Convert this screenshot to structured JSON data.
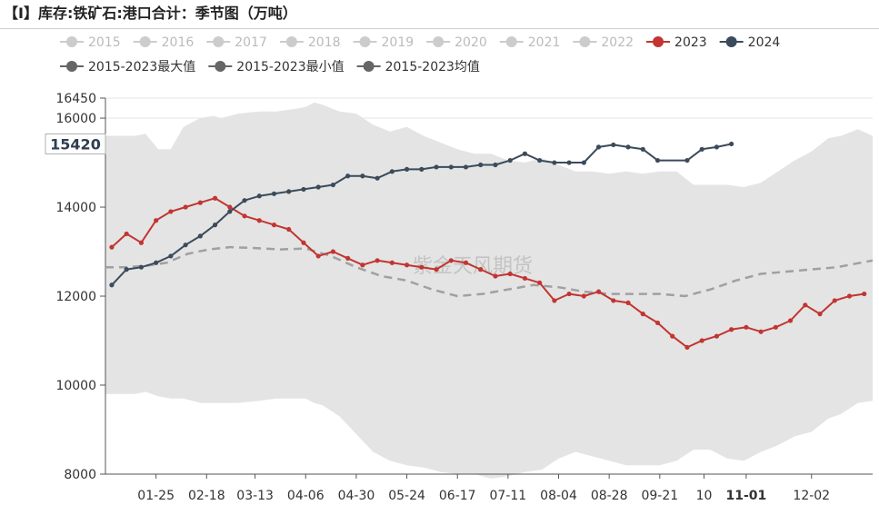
{
  "title": "【I】库存:铁矿石:港口合计：季节图（万吨）",
  "watermark": "紫金天风期货",
  "colors": {
    "band": "#e4e4e4",
    "average": "#a0a0a0",
    "series_2023": "#c23531",
    "series_2024": "#3b4b5b",
    "inactive": "#cccccc",
    "summary": "#666666",
    "grid": "#e6e6e6"
  },
  "chart_data": {
    "type": "line",
    "title": "【I】库存:铁矿石:港口合计：季节图（万吨）",
    "ylim": [
      8000,
      16450
    ],
    "xlim": [
      "01-01",
      "12-31"
    ],
    "y_ticks": [
      "8000",
      "10000",
      "12000",
      "14000",
      "16000",
      "16450"
    ],
    "y_tick_values": [
      8000,
      10000,
      12000,
      14000,
      16000,
      16450
    ],
    "x_ticks": [
      "01-25",
      "02-18",
      "03-13",
      "04-06",
      "04-30",
      "05-24",
      "06-17",
      "07-11",
      "08-04",
      "08-28",
      "09-21",
      "10",
      "11-01",
      "12-02"
    ],
    "x_tick_days": [
      25,
      49,
      72,
      96,
      120,
      144,
      168,
      192,
      216,
      240,
      264,
      285,
      305,
      336
    ],
    "highlight_x_tick": "11-01",
    "y_pointer_label": "15420",
    "y_pointer_value": 15420,
    "legend": [
      {
        "name": "2015",
        "active": false
      },
      {
        "name": "2016",
        "active": false
      },
      {
        "name": "2017",
        "active": false
      },
      {
        "name": "2018",
        "active": false
      },
      {
        "name": "2019",
        "active": false
      },
      {
        "name": "2020",
        "active": false
      },
      {
        "name": "2021",
        "active": false
      },
      {
        "name": "2022",
        "active": false
      },
      {
        "name": "2023",
        "active": true
      },
      {
        "name": "2024",
        "active": true
      },
      {
        "name": "2015-2023最大值",
        "active": true
      },
      {
        "name": "2015-2023最小值",
        "active": true
      },
      {
        "name": "2015-2023均值",
        "active": true
      }
    ],
    "band": {
      "name": "2015-2023最大值 / 2015-2023最小值",
      "x": [
        1,
        8,
        15,
        20,
        26,
        32,
        38,
        46,
        52,
        56,
        64,
        74,
        82,
        90,
        96,
        100,
        104,
        112,
        120,
        128,
        136,
        144,
        152,
        160,
        168,
        176,
        184,
        192,
        200,
        208,
        216,
        224,
        232,
        240,
        248,
        256,
        264,
        272,
        280,
        288,
        296,
        304,
        312,
        320,
        328,
        336,
        344,
        350,
        358,
        365
      ],
      "max": [
        15600,
        15600,
        15600,
        15650,
        15300,
        15300,
        15800,
        16000,
        16050,
        16000,
        16100,
        16150,
        16150,
        16200,
        16250,
        16350,
        16300,
        16150,
        16100,
        15850,
        15700,
        15800,
        15600,
        15450,
        15300,
        15200,
        15200,
        15050,
        15000,
        15100,
        14950,
        14800,
        14800,
        14750,
        14800,
        14750,
        14800,
        14800,
        14500,
        14500,
        14500,
        14450,
        14550,
        14800,
        15050,
        15250,
        15550,
        15600,
        15750,
        15600
      ],
      "min": [
        9800,
        9800,
        9800,
        9850,
        9750,
        9700,
        9700,
        9600,
        9600,
        9600,
        9600,
        9650,
        9700,
        9700,
        9700,
        9600,
        9550,
        9300,
        8900,
        8500,
        8300,
        8200,
        8150,
        8050,
        8000,
        8000,
        7900,
        7950,
        8050,
        8100,
        8350,
        8500,
        8400,
        8300,
        8200,
        8200,
        8200,
        8300,
        8550,
        8550,
        8350,
        8300,
        8500,
        8650,
        8850,
        8950,
        9250,
        9350,
        9600,
        9650
      ]
    },
    "series": [
      {
        "name": "2015-2023均值",
        "x": [
          1,
          10,
          20,
          30,
          40,
          50,
          60,
          72,
          84,
          96,
          108,
          120,
          132,
          144,
          156,
          168,
          180,
          192,
          204,
          216,
          228,
          240,
          252,
          264,
          276,
          288,
          300,
          312,
          324,
          336,
          348,
          365
        ],
        "values": [
          12650,
          12650,
          12680,
          12750,
          12950,
          13050,
          13100,
          13080,
          13050,
          13070,
          12900,
          12650,
          12450,
          12350,
          12150,
          12000,
          12050,
          12150,
          12250,
          12200,
          12100,
          12050,
          12050,
          12050,
          12000,
          12150,
          12350,
          12500,
          12550,
          12600,
          12650,
          12800
        ]
      },
      {
        "name": "2023",
        "x": [
          4,
          11,
          18,
          25,
          32,
          39,
          46,
          53,
          60,
          67,
          74,
          81,
          88,
          95,
          102,
          109,
          116,
          123,
          130,
          137,
          144,
          151,
          158,
          165,
          172,
          179,
          186,
          193,
          200,
          207,
          214,
          221,
          228,
          235,
          242,
          249,
          256,
          263,
          270,
          277,
          284,
          291,
          298,
          305,
          312,
          319,
          326,
          333,
          340,
          347,
          354,
          361
        ],
        "values": [
          13100,
          13400,
          13200,
          13700,
          13900,
          14000,
          14100,
          14200,
          14000,
          13800,
          13700,
          13600,
          13500,
          13200,
          12900,
          13000,
          12850,
          12700,
          12800,
          12750,
          12700,
          12650,
          12600,
          12800,
          12750,
          12600,
          12450,
          12500,
          12400,
          12300,
          11900,
          12050,
          12000,
          12100,
          11900,
          11850,
          11600,
          11400,
          11100,
          10850,
          11000,
          11100,
          11250,
          11300,
          11200,
          11300,
          11450,
          11800,
          11600,
          11900,
          12000,
          12050
        ]
      },
      {
        "name": "2024",
        "x": [
          4,
          11,
          18,
          25,
          32,
          39,
          46,
          53,
          60,
          67,
          74,
          81,
          88,
          95,
          102,
          109,
          116,
          123,
          130,
          137,
          144,
          151,
          158,
          165,
          172,
          179,
          186,
          193,
          200,
          207,
          214,
          221,
          228,
          235,
          242,
          249,
          256,
          263,
          277,
          284,
          291,
          298
        ],
        "values": [
          12250,
          12600,
          12650,
          12750,
          12900,
          13150,
          13350,
          13600,
          13900,
          14150,
          14250,
          14300,
          14350,
          14400,
          14450,
          14500,
          14700,
          14700,
          14650,
          14800,
          14850,
          14850,
          14900,
          14900,
          14900,
          14950,
          14950,
          15050,
          15200,
          15050,
          15000,
          15000,
          15000,
          15350,
          15400,
          15350,
          15300,
          15050,
          15050,
          15300,
          15350,
          15420
        ]
      }
    ]
  }
}
